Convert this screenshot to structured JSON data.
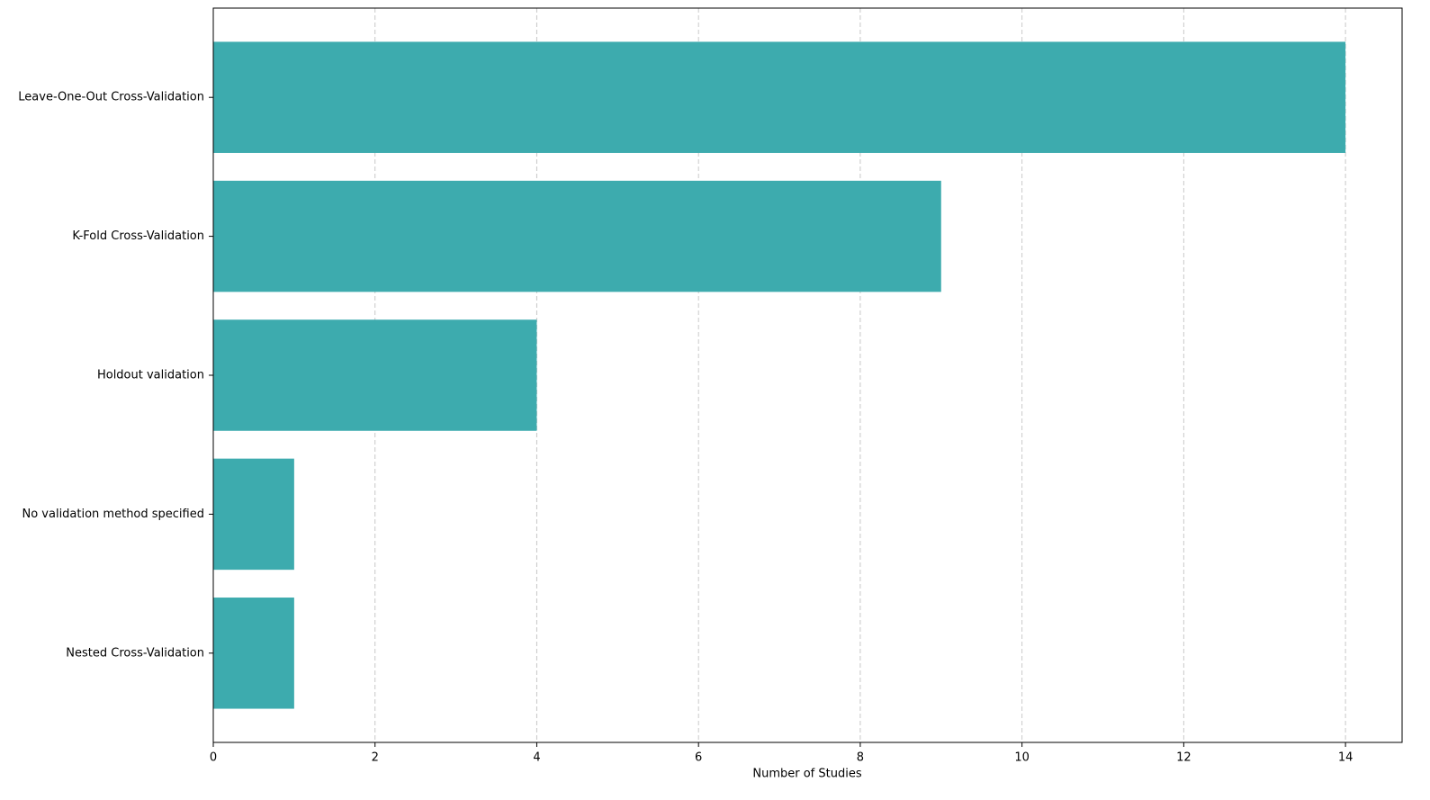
{
  "chart_data": {
    "type": "barh",
    "categories": [
      "Leave-One-Out Cross-Validation",
      "K-Fold Cross-Validation",
      "Holdout validation",
      "No validation method specified",
      "Nested Cross-Validation"
    ],
    "values": [
      14,
      9,
      4,
      1,
      1
    ],
    "color": "#3dabae",
    "x_label": "Number of Studies",
    "xlim": [
      0,
      14.7
    ],
    "xticks": [
      0,
      2,
      4,
      6,
      8,
      10,
      12,
      14
    ],
    "grid": true
  }
}
